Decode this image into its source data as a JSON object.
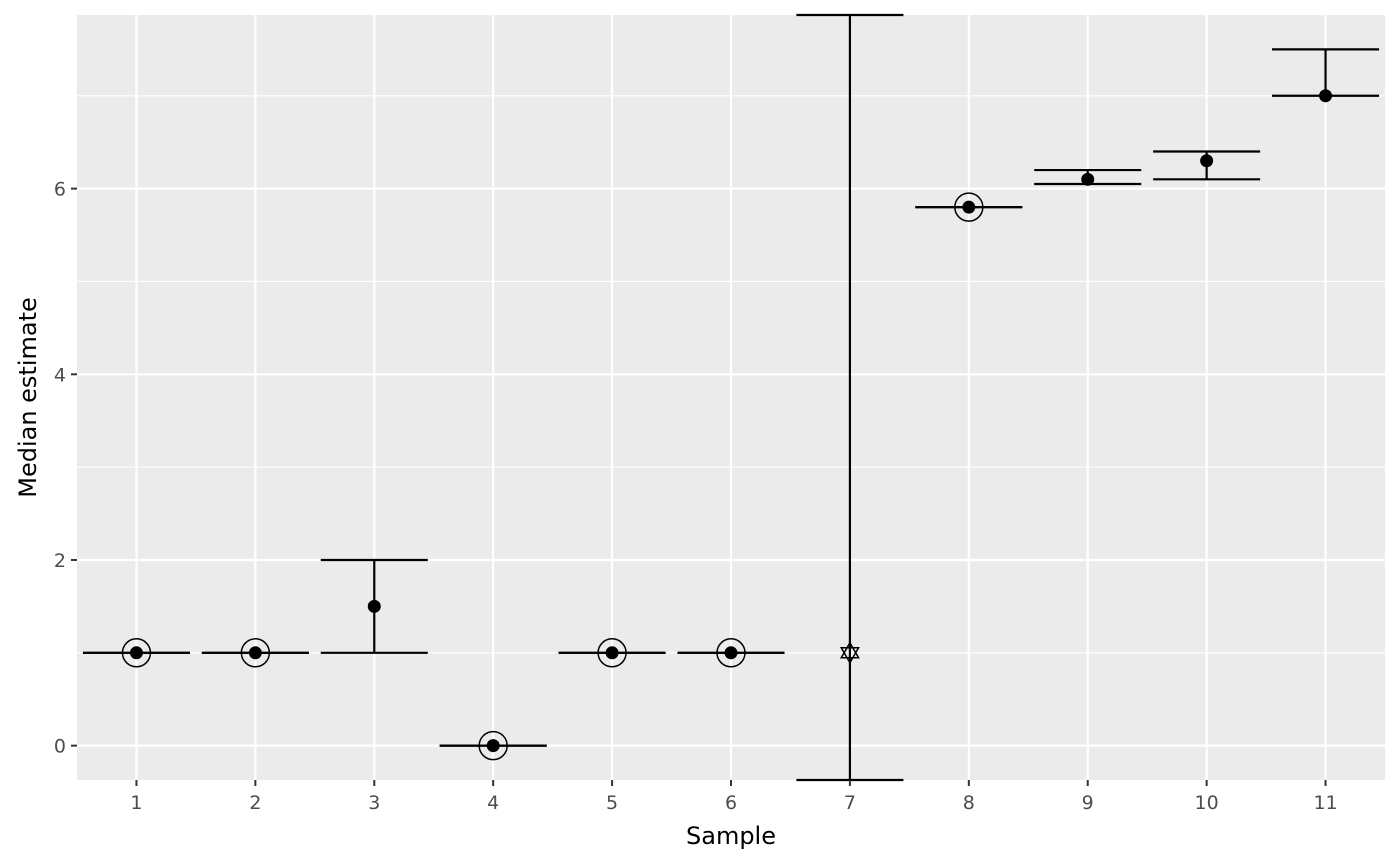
{
  "chart_data": {
    "type": "scatter",
    "subtype": "point-with-errorbars",
    "title": "",
    "xlabel": "Sample",
    "ylabel": "Median estimate",
    "categories": [
      "1",
      "2",
      "3",
      "4",
      "5",
      "6",
      "7",
      "8",
      "9",
      "10",
      "11"
    ],
    "yticks": [
      "0",
      "2",
      "4",
      "6"
    ],
    "ylim": [
      -0.37,
      7.87
    ],
    "grid": true,
    "legend": "none",
    "background": "#ebebeb",
    "gridline_color": "#ffffff",
    "mark_color": "#000000",
    "points": [
      {
        "x": "1",
        "y": 1.0,
        "lower": 1.0,
        "upper": 1.0,
        "marker": "circled"
      },
      {
        "x": "2",
        "y": 1.0,
        "lower": 1.0,
        "upper": 1.0,
        "marker": "circled"
      },
      {
        "x": "3",
        "y": 1.5,
        "lower": 1.0,
        "upper": 2.0,
        "marker": "dot"
      },
      {
        "x": "4",
        "y": 0.0,
        "lower": 0.0,
        "upper": 0.0,
        "marker": "circled"
      },
      {
        "x": "5",
        "y": 1.0,
        "lower": 1.0,
        "upper": 1.0,
        "marker": "circled"
      },
      {
        "x": "6",
        "y": 1.0,
        "lower": 1.0,
        "upper": 1.0,
        "marker": "circled"
      },
      {
        "x": "7",
        "y": 1.0,
        "lower": -0.37,
        "upper": 7.87,
        "marker": "hexagram"
      },
      {
        "x": "8",
        "y": 5.8,
        "lower": 5.8,
        "upper": 5.8,
        "marker": "circled"
      },
      {
        "x": "9",
        "y": 6.1,
        "lower": 6.05,
        "upper": 6.2,
        "marker": "dot"
      },
      {
        "x": "10",
        "y": 6.3,
        "lower": 6.1,
        "upper": 6.4,
        "marker": "dot"
      },
      {
        "x": "11",
        "y": 7.0,
        "lower": 7.0,
        "upper": 7.5,
        "marker": "dot"
      }
    ]
  }
}
